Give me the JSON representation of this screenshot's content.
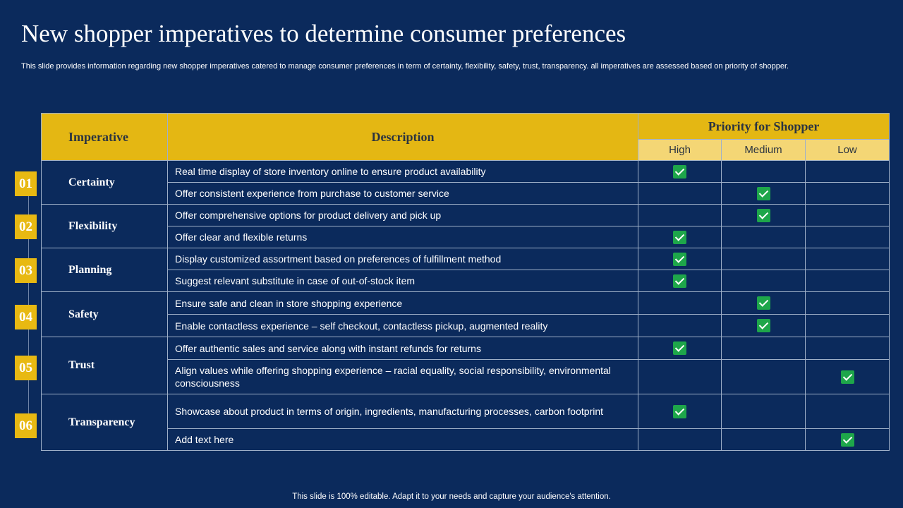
{
  "title": "New shopper imperatives to determine consumer preferences",
  "subtitle": "This slide provides information regarding new shopper imperatives catered to manage consumer preferences in term of certainty, flexibility, safety, trust, transparency. all imperatives are assessed based on priority of shopper.",
  "footer": "This slide is 100% editable. Adapt it to your needs and capture your audience's attention.",
  "table": {
    "headers": {
      "imperative": "Imperative",
      "description": "Description",
      "priority": "Priority for Shopper",
      "high": "High",
      "medium": "Medium",
      "low": "Low"
    },
    "groups": [
      {
        "number": "01",
        "imperative": "Certainty",
        "rows": [
          {
            "description": "Real time display of store inventory online to ensure product availability",
            "priority": "High"
          },
          {
            "description": "Offer consistent experience from purchase to customer service",
            "priority": "Medium"
          }
        ]
      },
      {
        "number": "02",
        "imperative": "Flexibility",
        "rows": [
          {
            "description": "Offer comprehensive options for product delivery and pick up",
            "priority": "Medium"
          },
          {
            "description": "Offer clear and flexible returns",
            "priority": "High"
          }
        ]
      },
      {
        "number": "03",
        "imperative": "Planning",
        "rows": [
          {
            "description": "Display customized assortment based on preferences of fulfillment method",
            "priority": "High"
          },
          {
            "description": "Suggest relevant substitute in case of out-of-stock item",
            "priority": "High"
          }
        ]
      },
      {
        "number": "04",
        "imperative": "Safety",
        "rows": [
          {
            "description": "Ensure safe and clean in store shopping experience",
            "priority": "Medium"
          },
          {
            "description": "Enable contactless experience – self checkout, contactless pickup, augmented reality",
            "priority": "Medium"
          }
        ]
      },
      {
        "number": "05",
        "imperative": "Trust",
        "rows": [
          {
            "description": "Offer authentic sales and service along with instant refunds for returns",
            "priority": "High"
          },
          {
            "description": "Align values while offering shopping experience – racial equality, social responsibility, environmental consciousness",
            "priority": "Low"
          }
        ]
      },
      {
        "number": "06",
        "imperative": "Transparency",
        "rows": [
          {
            "description": "Showcase about product in terms of origin, ingredients, manufacturing processes, carbon footprint",
            "priority": "High"
          },
          {
            "description": "Add text here",
            "priority": "Low"
          }
        ]
      }
    ]
  },
  "icons": {
    "check": "check-icon"
  },
  "colors": {
    "background": "#0b2a5c",
    "header": "#e4b713",
    "subheader": "#f4d675",
    "check": "#1ea64a",
    "badge": "#e8b912"
  }
}
